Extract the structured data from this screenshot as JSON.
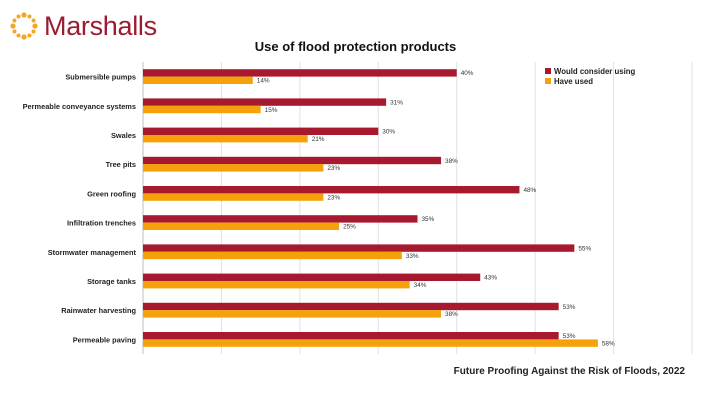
{
  "brand": {
    "name": "Marshalls",
    "logo_icon": "sun-dots-icon",
    "color": "#9b1b30",
    "accent": "#f5a623"
  },
  "chart_data": {
    "type": "bar",
    "orientation": "horizontal",
    "title": "Use of flood protection products",
    "categories": [
      "Submersible pumps",
      "Permeable conveyance systems",
      "Swales",
      "Tree pits",
      "Green roofing",
      "Infiltration trenches",
      "Stormwater management",
      "Storage tanks",
      "Rainwater harvesting",
      "Permeable paving"
    ],
    "series": [
      {
        "name": "Would consider using",
        "color": "#a6192e",
        "values": [
          40,
          31,
          30,
          38,
          48,
          35,
          55,
          43,
          53,
          53
        ]
      },
      {
        "name": "Have used",
        "color": "#f5a20a",
        "values": [
          14,
          15,
          21,
          23,
          23,
          25,
          33,
          34,
          38,
          58
        ]
      }
    ],
    "value_suffix": "%",
    "xlim": [
      0,
      70
    ],
    "grid": true,
    "legend_position": "top-right"
  },
  "source": "Future Proofing Against the Risk of Floods, 2022"
}
